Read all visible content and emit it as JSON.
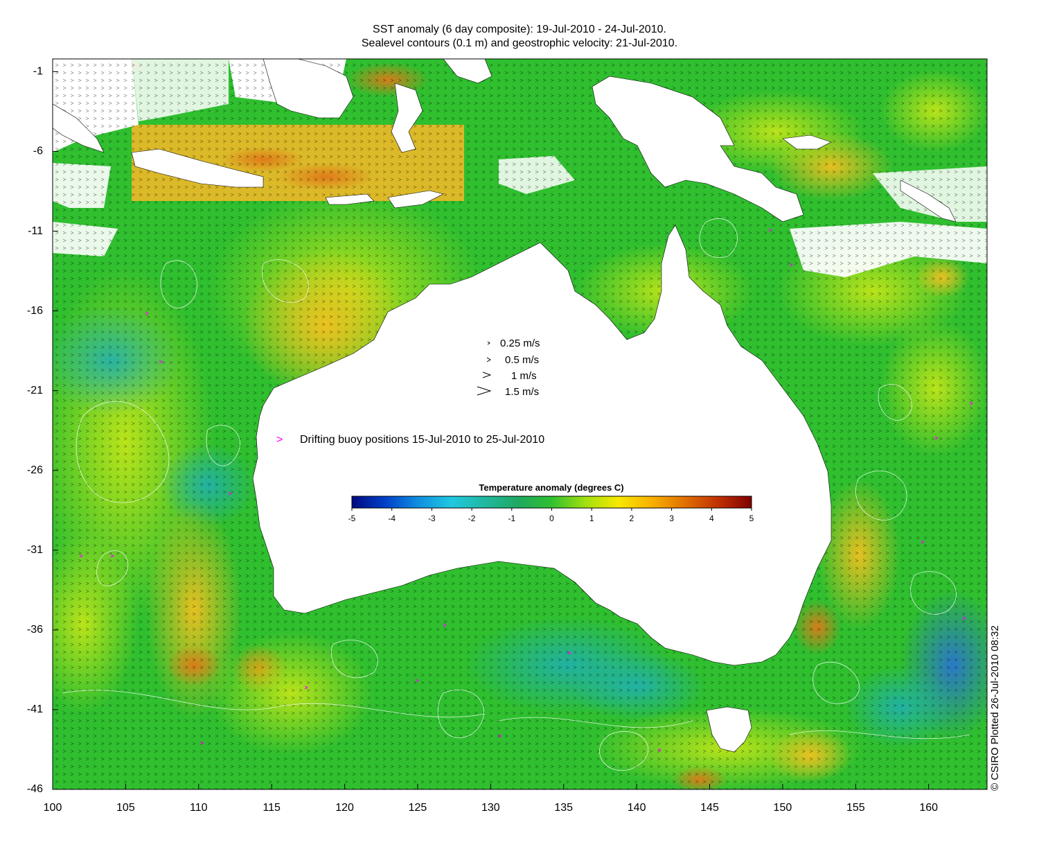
{
  "title": {
    "line1": "SST anomaly (6 day composite): 19-Jul-2010 - 24-Jul-2010.",
    "line2": "Sealevel contours (0.1 m) and geostrophic velocity: 21-Jul-2010."
  },
  "map": {
    "region": "Australia",
    "lon_range": [
      100,
      164
    ],
    "lat_range": [
      -46,
      -0.2
    ],
    "x_ticks": [
      "100",
      "105",
      "110",
      "115",
      "120",
      "125",
      "130",
      "135",
      "140",
      "145",
      "150",
      "155",
      "160"
    ],
    "y_ticks": [
      "-1",
      "-6",
      "-11",
      "-16",
      "-21",
      "-26",
      "-31",
      "-36",
      "-41",
      "-46"
    ],
    "colors": {
      "land": "#ffffff",
      "ocean_neutral": "#2fbf2f",
      "ocean_warm": "#f0c020",
      "ocean_cool": "#20b0b0",
      "contour": "#ffffff",
      "vector": "#000000",
      "buoy": "#ff00ff"
    }
  },
  "velocity_key": {
    "items": [
      {
        "label": "0.25 m/s",
        "speed": 0.25
      },
      {
        "label": "0.5 m/s",
        "speed": 0.5
      },
      {
        "label": "1 m/s",
        "speed": 1
      },
      {
        "label": "1.5 m/s",
        "speed": 1.5
      }
    ]
  },
  "buoy_legend": {
    "symbol": ">",
    "label": "Drifting buoy positions 15-Jul-2010 to 25-Jul-2010"
  },
  "colorbar": {
    "title": "Temperature anomaly (degrees C)",
    "min": -5,
    "max": 5,
    "ticks": [
      "-5",
      "-4",
      "-3",
      "-2",
      "-1",
      "0",
      "1",
      "2",
      "3",
      "4",
      "5"
    ],
    "colors": [
      "#000a80",
      "#0040c8",
      "#1090e0",
      "#20c8e0",
      "#20b8a0",
      "#20a860",
      "#30c030",
      "#a0e010",
      "#f8e800",
      "#f8b000",
      "#e07000",
      "#c03000",
      "#800000"
    ]
  },
  "credit": "© CSIRO Plotted 26-Jul-2010 08:32"
}
